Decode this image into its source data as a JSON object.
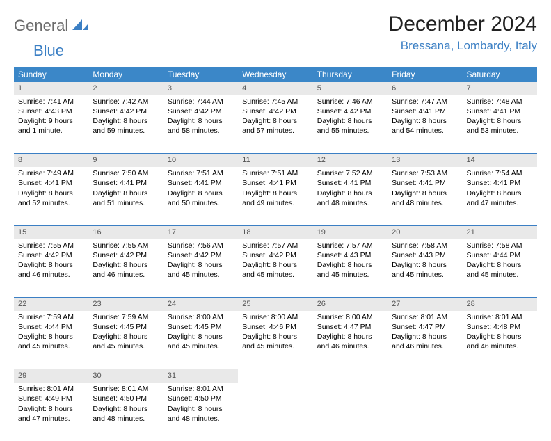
{
  "logo": {
    "part1": "General",
    "part2": "Blue"
  },
  "title": "December 2024",
  "location": "Bressana, Lombardy, Italy",
  "colors": {
    "header_bg": "#3b87c8",
    "header_text": "#ffffff",
    "accent": "#3b7fc4",
    "daynum_bg": "#e9e9e9",
    "daynum_text": "#555555",
    "body_text": "#000000",
    "logo_gray": "#6b6b6b"
  },
  "weekdays": [
    "Sunday",
    "Monday",
    "Tuesday",
    "Wednesday",
    "Thursday",
    "Friday",
    "Saturday"
  ],
  "weeks": [
    [
      {
        "n": "1",
        "sr": "7:41 AM",
        "ss": "4:43 PM",
        "dl": "9 hours and 1 minute."
      },
      {
        "n": "2",
        "sr": "7:42 AM",
        "ss": "4:42 PM",
        "dl": "8 hours and 59 minutes."
      },
      {
        "n": "3",
        "sr": "7:44 AM",
        "ss": "4:42 PM",
        "dl": "8 hours and 58 minutes."
      },
      {
        "n": "4",
        "sr": "7:45 AM",
        "ss": "4:42 PM",
        "dl": "8 hours and 57 minutes."
      },
      {
        "n": "5",
        "sr": "7:46 AM",
        "ss": "4:42 PM",
        "dl": "8 hours and 55 minutes."
      },
      {
        "n": "6",
        "sr": "7:47 AM",
        "ss": "4:41 PM",
        "dl": "8 hours and 54 minutes."
      },
      {
        "n": "7",
        "sr": "7:48 AM",
        "ss": "4:41 PM",
        "dl": "8 hours and 53 minutes."
      }
    ],
    [
      {
        "n": "8",
        "sr": "7:49 AM",
        "ss": "4:41 PM",
        "dl": "8 hours and 52 minutes."
      },
      {
        "n": "9",
        "sr": "7:50 AM",
        "ss": "4:41 PM",
        "dl": "8 hours and 51 minutes."
      },
      {
        "n": "10",
        "sr": "7:51 AM",
        "ss": "4:41 PM",
        "dl": "8 hours and 50 minutes."
      },
      {
        "n": "11",
        "sr": "7:51 AM",
        "ss": "4:41 PM",
        "dl": "8 hours and 49 minutes."
      },
      {
        "n": "12",
        "sr": "7:52 AM",
        "ss": "4:41 PM",
        "dl": "8 hours and 48 minutes."
      },
      {
        "n": "13",
        "sr": "7:53 AM",
        "ss": "4:41 PM",
        "dl": "8 hours and 48 minutes."
      },
      {
        "n": "14",
        "sr": "7:54 AM",
        "ss": "4:41 PM",
        "dl": "8 hours and 47 minutes."
      }
    ],
    [
      {
        "n": "15",
        "sr": "7:55 AM",
        "ss": "4:42 PM",
        "dl": "8 hours and 46 minutes."
      },
      {
        "n": "16",
        "sr": "7:55 AM",
        "ss": "4:42 PM",
        "dl": "8 hours and 46 minutes."
      },
      {
        "n": "17",
        "sr": "7:56 AM",
        "ss": "4:42 PM",
        "dl": "8 hours and 45 minutes."
      },
      {
        "n": "18",
        "sr": "7:57 AM",
        "ss": "4:42 PM",
        "dl": "8 hours and 45 minutes."
      },
      {
        "n": "19",
        "sr": "7:57 AM",
        "ss": "4:43 PM",
        "dl": "8 hours and 45 minutes."
      },
      {
        "n": "20",
        "sr": "7:58 AM",
        "ss": "4:43 PM",
        "dl": "8 hours and 45 minutes."
      },
      {
        "n": "21",
        "sr": "7:58 AM",
        "ss": "4:44 PM",
        "dl": "8 hours and 45 minutes."
      }
    ],
    [
      {
        "n": "22",
        "sr": "7:59 AM",
        "ss": "4:44 PM",
        "dl": "8 hours and 45 minutes."
      },
      {
        "n": "23",
        "sr": "7:59 AM",
        "ss": "4:45 PM",
        "dl": "8 hours and 45 minutes."
      },
      {
        "n": "24",
        "sr": "8:00 AM",
        "ss": "4:45 PM",
        "dl": "8 hours and 45 minutes."
      },
      {
        "n": "25",
        "sr": "8:00 AM",
        "ss": "4:46 PM",
        "dl": "8 hours and 45 minutes."
      },
      {
        "n": "26",
        "sr": "8:00 AM",
        "ss": "4:47 PM",
        "dl": "8 hours and 46 minutes."
      },
      {
        "n": "27",
        "sr": "8:01 AM",
        "ss": "4:47 PM",
        "dl": "8 hours and 46 minutes."
      },
      {
        "n": "28",
        "sr": "8:01 AM",
        "ss": "4:48 PM",
        "dl": "8 hours and 46 minutes."
      }
    ],
    [
      {
        "n": "29",
        "sr": "8:01 AM",
        "ss": "4:49 PM",
        "dl": "8 hours and 47 minutes."
      },
      {
        "n": "30",
        "sr": "8:01 AM",
        "ss": "4:50 PM",
        "dl": "8 hours and 48 minutes."
      },
      {
        "n": "31",
        "sr": "8:01 AM",
        "ss": "4:50 PM",
        "dl": "8 hours and 48 minutes."
      },
      null,
      null,
      null,
      null
    ]
  ],
  "labels": {
    "sunrise": "Sunrise: ",
    "sunset": "Sunset: ",
    "daylight": "Daylight: "
  }
}
